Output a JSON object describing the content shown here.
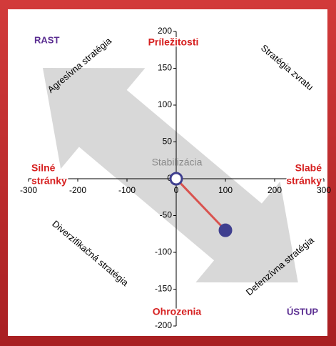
{
  "chart_data": {
    "type": "scatter",
    "series": [
      {
        "x": [
          0,
          100
        ],
        "values": [
          0,
          -70
        ],
        "color": "#d9534f",
        "marker_color": "#3f3f8f"
      }
    ],
    "xlim": [
      -300,
      300
    ],
    "xticks": [
      -300,
      -200,
      -100,
      0,
      100,
      200,
      300
    ],
    "ylim": [
      -200,
      200
    ],
    "yticks": [
      -200,
      -150,
      -100,
      -50,
      0,
      50,
      100,
      150,
      200
    ],
    "corners": {
      "top_left": "RAST",
      "bottom_right": "ÚSTUP"
    },
    "axis_labels": {
      "top": "Príležitosti",
      "bottom": "Ohrozenia",
      "left": [
        "Silné",
        "stránky"
      ],
      "right": [
        "Slabé",
        "stránky"
      ]
    },
    "center_label": "Stabilizácia",
    "strategies": [
      "Agresívna stratégia",
      "Stratégia zvratu",
      "Diverzifikačná stratégia",
      "Defenzívna stratégia"
    ]
  }
}
